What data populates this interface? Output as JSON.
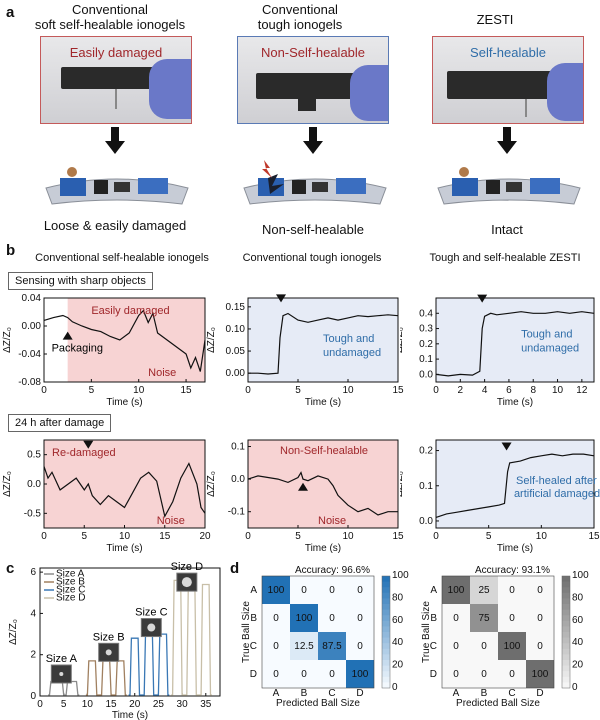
{
  "panel_a": {
    "letter": "a",
    "columns": [
      {
        "title_line1": "Conventional",
        "title_line2": "soft self-healable ionogels",
        "photo_label": "Easily damaged",
        "photo_label_color": "#a0272b",
        "caption": "Loose & easily damaged",
        "border_color": "#c45a5a"
      },
      {
        "title_line1": "Conventional",
        "title_line2": "tough ionogels",
        "photo_label": "Non-Self-healable",
        "photo_label_color": "#a0272b",
        "caption": "Non-self-healable",
        "border_color": "#5a7ab5"
      },
      {
        "title_line1": "ZESTI",
        "title_line2": "",
        "photo_label": "Self-healable",
        "photo_label_color": "#2f6da8",
        "caption": "Intact",
        "border_color": "#c45a5a"
      }
    ]
  },
  "panel_b": {
    "letter": "b",
    "col_titles": [
      "Conventional self-healable ionogels",
      "Conventional tough ionogels",
      "Tough and self-healable ZESTI"
    ],
    "row1_label": "Sensing with sharp objects",
    "row2_label": "24 h after damage",
    "ylabel": "ΔZ/Z₀",
    "xlabel": "Time (s)",
    "packaging_label": "Packaging"
  },
  "panel_c": {
    "letter": "c",
    "size_labels": [
      "Size A",
      "Size B",
      "Size C",
      "Size D"
    ],
    "legend": [
      "Size A",
      "Size B",
      "Size C",
      "Size D"
    ],
    "ylabel": "ΔZ/Z₀",
    "xlabel": "Time (s)"
  },
  "panel_d": {
    "letter": "d",
    "xlabel": "Predicted Ball Size",
    "ylabel": "True Ball Size",
    "left_accuracy": "Accuracy: 96.6%",
    "right_accuracy": "Accuracy: 93.1%"
  },
  "colors": {
    "damage_bg": "#f7d3d3",
    "intact_bg": "#e6ebf6",
    "label_red": "#a0272b",
    "label_blue": "#2f6da8",
    "trace": "#111111"
  },
  "chart_data": [
    {
      "type": "line",
      "id": "b1",
      "xlim": [
        0,
        17
      ],
      "ylim": [
        -0.08,
        0.04
      ],
      "xticks": [
        0,
        5,
        10,
        15
      ],
      "yticks": [
        -0.08,
        -0.04,
        0.0,
        0.04
      ],
      "ytick_labels": [
        "-0.08",
        "-0.04",
        "0.00",
        "0.04"
      ],
      "shade": "damage",
      "shade_from": 2.5,
      "annotations": [
        "Easily damaged",
        "Noise"
      ],
      "x": [
        0,
        1,
        2,
        2.5,
        3,
        4,
        5,
        6,
        7,
        8,
        9,
        10,
        10.5,
        11,
        11.5,
        12,
        13,
        14,
        15,
        15.5,
        16,
        16.5,
        17
      ],
      "y": [
        0.008,
        0.012,
        0.015,
        0.012,
        0.006,
        0.0,
        -0.005,
        -0.008,
        -0.015,
        -0.02,
        -0.01,
        0.015,
        0.022,
        0.005,
        0.018,
        -0.01,
        -0.02,
        -0.03,
        -0.04,
        -0.06,
        -0.045,
        -0.065,
        -0.02
      ]
    },
    {
      "type": "line",
      "id": "b2",
      "xlim": [
        0,
        15
      ],
      "ylim": [
        -0.02,
        0.17
      ],
      "xticks": [
        0,
        5,
        10,
        15
      ],
      "yticks": [
        0.0,
        0.05,
        0.1,
        0.15
      ],
      "ytick_labels": [
        "0.00",
        "0.05",
        "0.10",
        "0.15"
      ],
      "shade": "intact",
      "annotations": [
        "Tough and",
        "undamaged"
      ],
      "x": [
        0,
        1,
        2,
        3,
        3.2,
        3.5,
        4,
        5,
        6,
        7,
        8,
        9,
        10,
        11,
        12,
        13,
        14,
        15
      ],
      "y": [
        0.0,
        0.0,
        -0.002,
        0.0,
        0.08,
        0.13,
        0.135,
        0.12,
        0.115,
        0.12,
        0.125,
        0.12,
        0.125,
        0.13,
        0.128,
        0.13,
        0.132,
        0.13
      ]
    },
    {
      "type": "line",
      "id": "b3",
      "xlim": [
        0,
        13
      ],
      "ylim": [
        -0.05,
        0.5
      ],
      "xticks": [
        0,
        2,
        4,
        6,
        8,
        10,
        12
      ],
      "yticks": [
        0.0,
        0.1,
        0.2,
        0.3,
        0.4
      ],
      "ytick_labels": [
        "0.0",
        "0.1",
        "0.2",
        "0.3",
        "0.4"
      ],
      "shade": "intact",
      "annotations": [
        "Tough and",
        "undamaged"
      ],
      "x": [
        0,
        1,
        2,
        3,
        3.6,
        3.8,
        4,
        4.5,
        5,
        6,
        7,
        8,
        9,
        10,
        11,
        12,
        13
      ],
      "y": [
        0.0,
        -0.01,
        0.0,
        -0.005,
        0.02,
        0.3,
        0.38,
        0.4,
        0.39,
        0.4,
        0.41,
        0.4,
        0.4,
        0.41,
        0.4,
        0.41,
        0.4
      ]
    },
    {
      "type": "line",
      "id": "b4",
      "xlim": [
        0,
        20
      ],
      "ylim": [
        -0.75,
        0.75
      ],
      "xticks": [
        0,
        5,
        10,
        15,
        20
      ],
      "yticks": [
        -0.5,
        0.0,
        0.5
      ],
      "ytick_labels": [
        "-0.5",
        "0.0",
        "0.5"
      ],
      "shade": "damage",
      "annotations": [
        "Re-damaged",
        "Noise"
      ],
      "x": [
        0,
        0.5,
        1,
        2,
        3,
        4,
        5,
        5.5,
        6,
        7,
        8,
        9,
        10,
        11,
        12,
        13,
        14,
        15,
        16,
        17,
        18,
        19,
        19.5,
        20
      ],
      "y": [
        0.3,
        0.1,
        0.2,
        -0.1,
        0.0,
        0.1,
        -0.1,
        0.0,
        -0.2,
        -0.35,
        -0.2,
        -0.3,
        -0.4,
        -0.15,
        0.1,
        0.2,
        0.05,
        -0.55,
        -0.3,
        0.1,
        0.35,
        0.0,
        -0.4,
        -0.5
      ]
    },
    {
      "type": "line",
      "id": "b5",
      "xlim": [
        0,
        15
      ],
      "ylim": [
        -0.15,
        0.12
      ],
      "xticks": [
        0,
        5,
        10,
        15
      ],
      "yticks": [
        -0.1,
        0.0,
        0.1
      ],
      "ytick_labels": [
        "-0.1",
        "0.0",
        "0.1"
      ],
      "shade": "damage",
      "annotations": [
        "Non-Self-healable",
        "Noise"
      ],
      "x": [
        0,
        1,
        2,
        3,
        4,
        5,
        5.3,
        5.5,
        6,
        7,
        8,
        8.5,
        9,
        10,
        11,
        12,
        13,
        14,
        15
      ],
      "y": [
        0.0,
        0.01,
        0.005,
        0.0,
        -0.01,
        0.005,
        0.02,
        0.0,
        -0.005,
        0.01,
        0.0,
        -0.02,
        -0.05,
        -0.08,
        -0.1,
        -0.09,
        -0.11,
        -0.1,
        -0.1
      ]
    },
    {
      "type": "line",
      "id": "b6",
      "xlim": [
        0,
        15
      ],
      "ylim": [
        -0.02,
        0.23
      ],
      "xticks": [
        0,
        5,
        10,
        15
      ],
      "yticks": [
        0.0,
        0.1,
        0.2
      ],
      "ytick_labels": [
        "0.0",
        "0.1",
        "0.2"
      ],
      "shade": "intact",
      "annotations": [
        "Self-healed after",
        "artificial damaged"
      ],
      "x": [
        0,
        1,
        2,
        3,
        4,
        5,
        6,
        6.5,
        6.8,
        7,
        8,
        9,
        10,
        11,
        12,
        13,
        14,
        15
      ],
      "y": [
        0.01,
        0.02,
        0.025,
        0.03,
        0.035,
        0.04,
        0.045,
        0.05,
        0.14,
        0.165,
        0.17,
        0.18,
        0.185,
        0.19,
        0.185,
        0.19,
        0.19,
        0.185
      ]
    },
    {
      "type": "line",
      "id": "c",
      "xlim": [
        0,
        38
      ],
      "ylim": [
        0,
        6.2
      ],
      "xticks": [
        0,
        5,
        10,
        15,
        20,
        25,
        30,
        35
      ],
      "yticks": [
        0,
        2,
        4,
        6
      ],
      "ytick_labels": [
        "0",
        "2",
        "4",
        "6"
      ],
      "series": [
        {
          "name": "Size A",
          "color": "#8a8a8a",
          "pulses": [
            [
              2,
              5,
              0.7
            ],
            [
              5.5,
              8,
              0.7
            ]
          ]
        },
        {
          "name": "Size B",
          "color": "#a08060",
          "pulses": [
            [
              10,
              12,
              1.7
            ],
            [
              13,
              15,
              1.8
            ],
            [
              16,
              18,
              1.7
            ]
          ]
        },
        {
          "name": "Size C",
          "color": "#3a78b5",
          "pulses": [
            [
              19,
              21,
              2.8
            ],
            [
              22,
              24,
              3.2
            ],
            [
              25,
              27,
              3.0
            ]
          ]
        },
        {
          "name": "Size D",
          "color": "#c8bfa8",
          "pulses": [
            [
              28,
              30,
              5.6
            ],
            [
              31,
              33,
              5.3
            ],
            [
              34,
              36,
              5.4
            ]
          ]
        }
      ]
    },
    {
      "type": "heatmap",
      "id": "d1",
      "title": "Accuracy: 96.6%",
      "categories": [
        "A",
        "B",
        "C",
        "D"
      ],
      "xlabel": "Predicted Ball Size",
      "ylabel": "True Ball Size",
      "colorbar_ticks": [
        0,
        20,
        40,
        60,
        80,
        100
      ],
      "colormap": "blue",
      "values": [
        [
          100,
          0,
          0,
          0
        ],
        [
          0,
          100,
          0,
          0
        ],
        [
          0,
          12.5,
          87.5,
          0
        ],
        [
          0,
          0,
          0,
          100
        ]
      ],
      "labels": [
        [
          "100",
          "0",
          "0",
          "0"
        ],
        [
          "0",
          "100",
          "0",
          "0"
        ],
        [
          "0",
          "12.5",
          "87.5",
          "0"
        ],
        [
          "0",
          "0",
          "0",
          "100"
        ]
      ]
    },
    {
      "type": "heatmap",
      "id": "d2",
      "title": "Accuracy: 93.1%",
      "categories": [
        "A",
        "B",
        "C",
        "D"
      ],
      "xlabel": "Predicted Ball Size",
      "ylabel": "True Ball Size",
      "colorbar_ticks": [
        0,
        20,
        40,
        60,
        80,
        100
      ],
      "colormap": "gray",
      "values": [
        [
          100,
          25,
          0,
          0
        ],
        [
          0,
          75,
          0,
          0
        ],
        [
          0,
          0,
          100,
          0
        ],
        [
          0,
          0,
          0,
          100
        ]
      ],
      "labels": [
        [
          "100",
          "25",
          "0",
          "0"
        ],
        [
          "0",
          "75",
          "0",
          "0"
        ],
        [
          "0",
          "0",
          "100",
          "0"
        ],
        [
          "0",
          "0",
          "0",
          "100"
        ]
      ]
    }
  ]
}
